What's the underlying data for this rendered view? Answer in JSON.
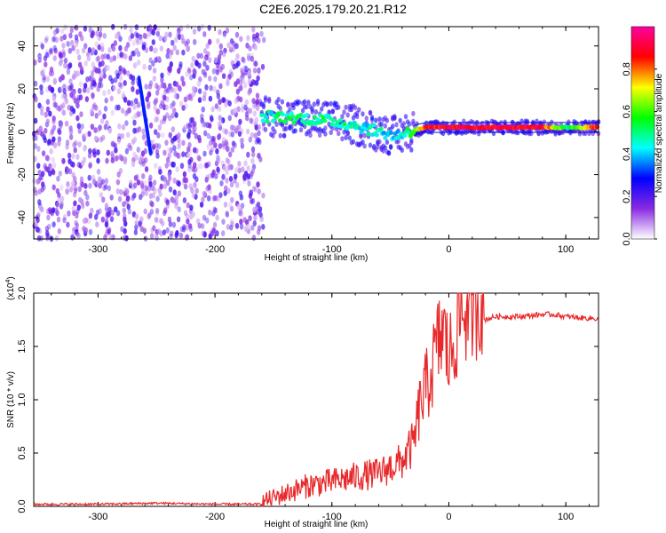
{
  "title": "C2E6.2025.179.20.21.R12",
  "chart_data": [
    {
      "type": "heatmap",
      "xlabel": "Height of straight line (km)",
      "ylabel": "Frequency (Hz)",
      "xlim": [
        -355,
        128
      ],
      "ylim": [
        -50,
        49
      ],
      "xticks": [
        -300,
        -200,
        -100,
        0,
        100
      ],
      "yticks": [
        -40,
        -20,
        0,
        20,
        40
      ],
      "colorbar": {
        "label": "Normalized spectral amplitude",
        "range": [
          0,
          1
        ],
        "ticks": [
          0.0,
          0.2,
          0.4,
          0.6,
          0.8
        ],
        "tick_labels": [
          "0.0",
          "0.2",
          "0.4",
          "0.6",
          "0.8"
        ],
        "colormap": [
          "#ffffff",
          "#8a2be2",
          "#0000ff",
          "#00ffff",
          "#00ff00",
          "#ffff00",
          "#ff0000",
          "#ff00a0"
        ]
      },
      "features": [
        {
          "description": "noise band",
          "x_range": [
            -355,
            -158
          ],
          "freq_range": [
            -50,
            49
          ],
          "amplitude": 0.2
        },
        {
          "description": "streak",
          "x_range": [
            -265,
            -255
          ],
          "freq_range": [
            -10,
            25
          ],
          "amplitude": 0.3
        },
        {
          "description": "signal track",
          "x": [
            -160,
            -140,
            -120,
            -100,
            -80,
            -60,
            -45,
            -35,
            -20,
            0,
            20,
            40,
            60,
            80,
            100,
            128
          ],
          "frequency": [
            7,
            7,
            6,
            5,
            3,
            0,
            -2,
            0,
            2,
            2,
            2,
            2,
            2,
            2,
            2,
            2
          ],
          "amplitude": [
            0.45,
            0.5,
            0.5,
            0.5,
            0.45,
            0.45,
            0.4,
            0.5,
            0.85,
            0.9,
            0.9,
            0.9,
            0.9,
            0.9,
            0.5,
            0.9
          ]
        }
      ]
    },
    {
      "type": "line",
      "xlabel": "Height of straight line (km)",
      "ylabel": "SNR (10 * v/v)",
      "y_multiplier_label": "(x10",
      "y_multiplier_exp": "4",
      "y_multiplier_close": ")",
      "xlim": [
        -355,
        128
      ],
      "ylim": [
        0,
        2.0
      ],
      "xticks": [
        -300,
        -200,
        -100,
        0,
        100
      ],
      "yticks": [
        0.0,
        0.5,
        1.0,
        1.5,
        2.0
      ],
      "ytick_labels": [
        "0.0",
        "0.5",
        "1.0",
        "1.5",
        "2.0"
      ],
      "series": [
        {
          "color": "#e8292b",
          "x": [
            -355,
            -300,
            -250,
            -200,
            -160,
            -140,
            -120,
            -100,
            -80,
            -60,
            -50,
            -40,
            -30,
            -25,
            -20,
            -15,
            -10,
            -5,
            0,
            5,
            10,
            15,
            20,
            30,
            40,
            60,
            80,
            90,
            100,
            110,
            128
          ],
          "values": [
            0.01,
            0.01,
            0.02,
            0.01,
            0.01,
            0.08,
            0.15,
            0.18,
            0.22,
            0.25,
            0.3,
            0.35,
            0.5,
            0.8,
            0.95,
            1.1,
            1.3,
            1.45,
            1.2,
            1.4,
            1.6,
            1.65,
            1.7,
            1.75,
            1.78,
            1.78,
            1.8,
            1.8,
            1.78,
            1.77,
            1.76
          ]
        }
      ]
    }
  ]
}
